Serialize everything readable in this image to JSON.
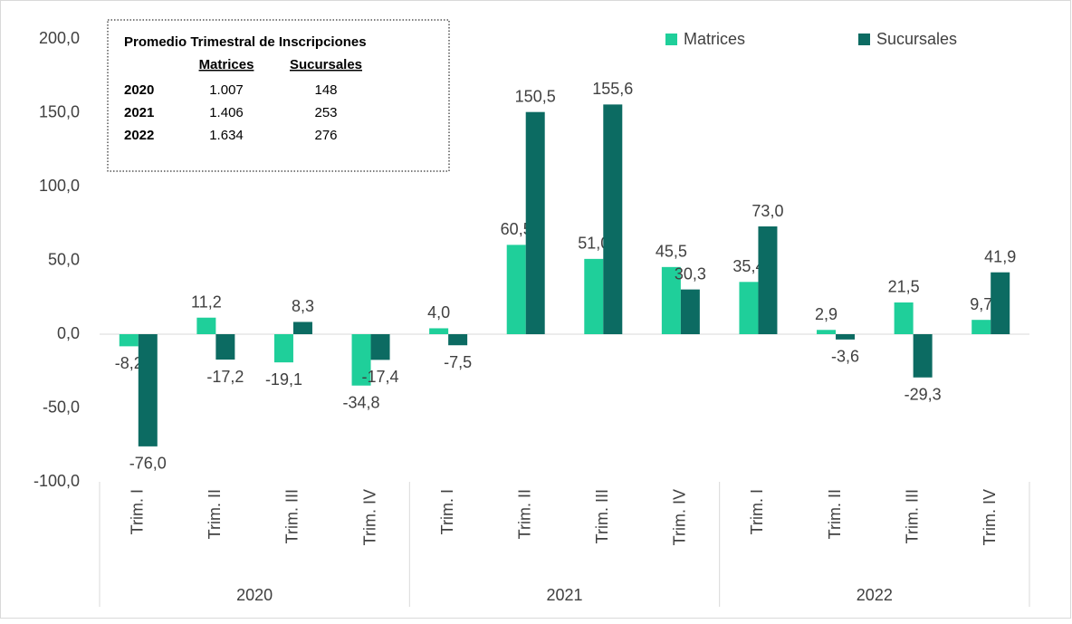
{
  "chart_data": {
    "type": "bar",
    "categories": [
      "Trim. I",
      "Trim. II",
      "Trim. III",
      "Trim. IV",
      "Trim. I",
      "Trim. II",
      "Trim. III",
      "Trim. IV",
      "Trim. I",
      "Trim. II",
      "Trim. III",
      "Trim. IV"
    ],
    "category_groups": [
      "2020",
      "2021",
      "2022"
    ],
    "series": [
      {
        "name": "Matrices",
        "color": "#1fcf9a",
        "values": [
          -8.2,
          11.2,
          -19.1,
          -34.8,
          4.0,
          60.5,
          51.0,
          45.5,
          35.4,
          2.9,
          21.5,
          9.7
        ],
        "value_labels": [
          "-8,2",
          "11,2",
          "-19,1",
          "-34,8",
          "4,0",
          "60,5",
          "51,0",
          "45,5",
          "35,4",
          "2,9",
          "21,5",
          "9,7"
        ]
      },
      {
        "name": "Sucursales",
        "color": "#0c6b62",
        "values": [
          -76.0,
          -17.2,
          8.3,
          -17.4,
          -7.5,
          150.5,
          155.6,
          30.3,
          73.0,
          -3.6,
          -29.3,
          41.9
        ],
        "value_labels": [
          "-76,0",
          "-17,2",
          "8,3",
          "-17,4",
          "-7,5",
          "150,5",
          "155,6",
          "30,3",
          "73,0",
          "-3,6",
          "-29,3",
          "41,9"
        ]
      }
    ],
    "ylim": [
      -100,
      200
    ],
    "yticks": [
      {
        "value": -100,
        "label": "-100,0"
      },
      {
        "value": -50,
        "label": "-50,0"
      },
      {
        "value": 0,
        "label": "0,0"
      },
      {
        "value": 50,
        "label": "50,0"
      },
      {
        "value": 100,
        "label": "100,0"
      },
      {
        "value": 150,
        "label": "150,0"
      },
      {
        "value": 200,
        "label": "200,0"
      }
    ],
    "legend": "top-right",
    "inset": {
      "title": "Promedio Trimestral de Inscripciones",
      "columns": [
        "Matrices",
        "Sucursales"
      ],
      "rows": [
        {
          "label": "2020",
          "values": [
            "1.007",
            "148"
          ]
        },
        {
          "label": "2021",
          "values": [
            "1.406",
            "253"
          ]
        },
        {
          "label": "2022",
          "values": [
            "1.634",
            "276"
          ]
        }
      ]
    }
  }
}
